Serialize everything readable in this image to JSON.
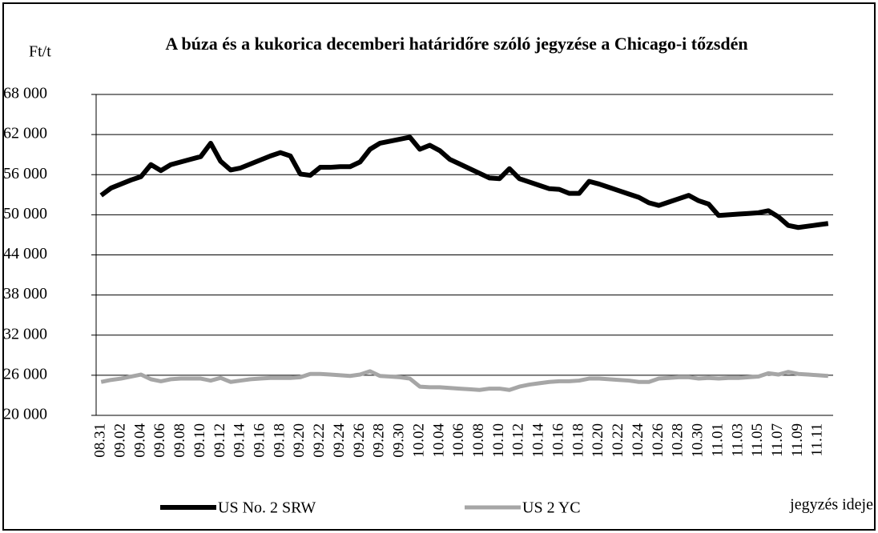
{
  "chart_data": {
    "type": "line",
    "title": "A búza és a kukorica decemberi határidőre szóló jegyzése a Chicago-i tőzsdén",
    "y_label": "Ft/t",
    "x_label": "jegyzés ideje",
    "categories": [
      "08.31",
      null,
      "09.02",
      null,
      "09.04",
      null,
      "09.06",
      null,
      "09.08",
      null,
      "09.10",
      null,
      "09.12",
      null,
      "09.14",
      null,
      "09.16",
      null,
      "09.18",
      null,
      "09.20",
      null,
      "09.22",
      null,
      "09.24",
      null,
      "09.26",
      null,
      "09.28",
      null,
      "09.30",
      null,
      "10.02",
      null,
      "10.04",
      null,
      "10.06",
      null,
      "10.08",
      null,
      "10.10",
      null,
      "10.12",
      null,
      "10.14",
      null,
      "10.16",
      null,
      "10.18",
      null,
      "10.20",
      null,
      "10.22",
      null,
      "10.24",
      null,
      "10.26",
      null,
      "10.28",
      null,
      "10.30",
      null,
      "11.01",
      null,
      "11.03",
      null,
      "11.05",
      null,
      "11.07",
      null,
      "11.09",
      null,
      "11.11",
      null
    ],
    "series": [
      {
        "name": "US No. 2 SRW",
        "color": "#000000",
        "values": [
          52900,
          54000,
          54600,
          55200,
          55700,
          57500,
          56600,
          57500,
          57900,
          58300,
          58700,
          60700,
          58000,
          56700,
          57000,
          57600,
          58200,
          58800,
          59300,
          58800,
          56100,
          55900,
          57100,
          57100,
          57200,
          57200,
          57900,
          59800,
          60700,
          61000,
          61300,
          61600,
          59800,
          60400,
          59600,
          58300,
          57600,
          56900,
          56200,
          55500,
          55400,
          56900,
          55400,
          54900,
          54400,
          53900,
          53800,
          53200,
          53200,
          55000,
          54600,
          54100,
          53600,
          53100,
          52600,
          51800,
          51400,
          51900,
          52400,
          52900,
          52100,
          51600,
          49900,
          50000,
          50100,
          50200,
          50300,
          50600,
          49700,
          48400,
          48100,
          48300,
          48500,
          48700
        ]
      },
      {
        "name": "US 2 YC",
        "color": "#a6a6a6",
        "values": [
          25000,
          25300,
          25500,
          25800,
          26100,
          25400,
          25100,
          25400,
          25500,
          25500,
          25500,
          25200,
          25600,
          25000,
          25200,
          25400,
          25500,
          25600,
          25600,
          25600,
          25700,
          26200,
          26200,
          26100,
          26000,
          25900,
          26100,
          26600,
          25900,
          25800,
          25700,
          25500,
          24300,
          24200,
          24200,
          24100,
          24000,
          23900,
          23800,
          24000,
          24000,
          23800,
          24300,
          24600,
          24800,
          25000,
          25100,
          25100,
          25200,
          25500,
          25500,
          25400,
          25300,
          25200,
          25000,
          25000,
          25500,
          25600,
          25700,
          25700,
          25500,
          25600,
          25500,
          25600,
          25600,
          25700,
          25800,
          26300,
          26100,
          26500,
          26200,
          26100,
          26000,
          25900
        ]
      }
    ],
    "ylim": [
      20000,
      68000
    ],
    "yticks": [
      {
        "value": 20000,
        "label": "20 000"
      },
      {
        "value": 26000,
        "label": "26 000"
      },
      {
        "value": 32000,
        "label": "32 000"
      },
      {
        "value": 38000,
        "label": "38 000"
      },
      {
        "value": 44000,
        "label": "44 000"
      },
      {
        "value": 50000,
        "label": "50 000"
      },
      {
        "value": 56000,
        "label": "56 000"
      },
      {
        "value": 62000,
        "label": "62 000"
      },
      {
        "value": 68000,
        "label": "68 000"
      }
    ],
    "grid": true
  }
}
